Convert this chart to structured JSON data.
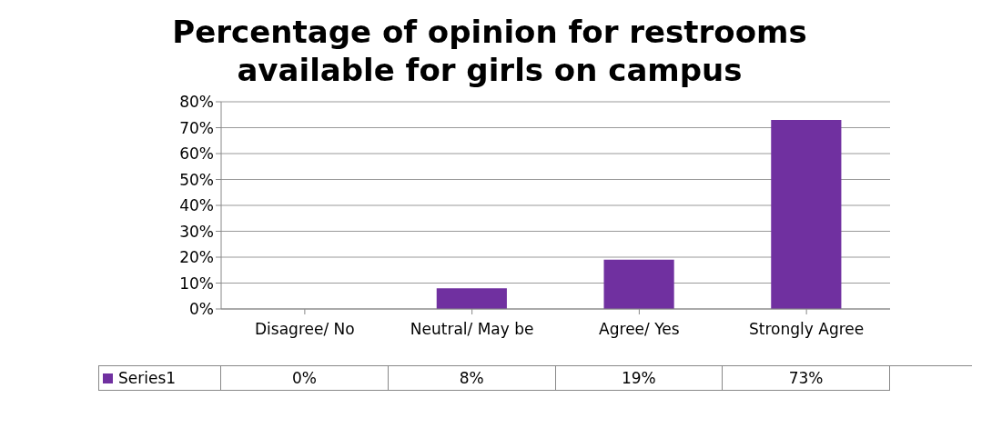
{
  "chart_data": {
    "type": "bar",
    "title": "Percentage of opinion for restrooms available for girls on campus",
    "categories": [
      "Disagree/ No",
      "Neutral/ May be",
      "Agree/ Yes",
      "Strongly Agree"
    ],
    "series": [
      {
        "name": "Series1",
        "color": "#7030a0",
        "values": [
          0,
          8,
          19,
          73
        ]
      }
    ],
    "ylim": [
      0,
      80
    ],
    "yticks": [
      {
        "value": 0,
        "label": "0%"
      },
      {
        "value": 10,
        "label": "10%"
      },
      {
        "value": 20,
        "label": "20%"
      },
      {
        "value": 30,
        "label": "30%"
      },
      {
        "value": 40,
        "label": "40%"
      },
      {
        "value": 50,
        "label": "50%"
      },
      {
        "value": 60,
        "label": "60%"
      },
      {
        "value": 70,
        "label": "70%"
      },
      {
        "value": 80,
        "label": "80%"
      }
    ],
    "value_labels": [
      [
        "0%",
        "8%",
        "19%",
        "73%"
      ]
    ],
    "grid": "y",
    "legend": "bottom"
  }
}
